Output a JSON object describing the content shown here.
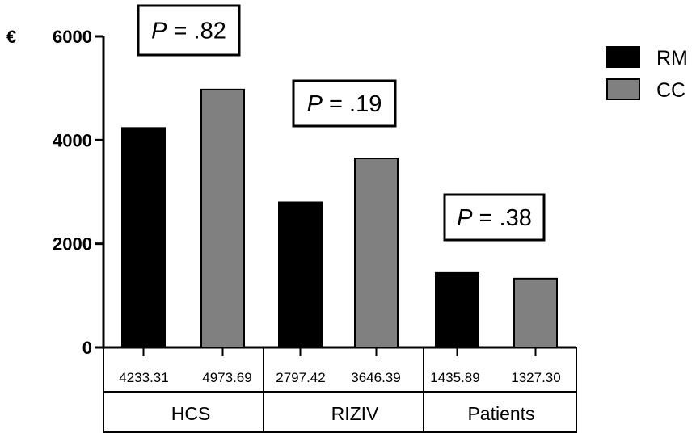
{
  "chart_data": {
    "type": "bar",
    "y_unit": "€",
    "ylim": [
      0,
      6000
    ],
    "yticks": [
      "0",
      "2000",
      "4000",
      "6000"
    ],
    "categories": [
      "HCS",
      "RIZIV",
      "Patients"
    ],
    "series": [
      {
        "name": "RM",
        "color": "#000000",
        "values": [
          4233.31,
          2797.42,
          1435.89
        ],
        "labels": [
          "4233.31",
          "2797.42",
          "1435.89"
        ]
      },
      {
        "name": "CC",
        "color": "#808080",
        "values": [
          4973.69,
          3646.39,
          1327.3
        ],
        "labels": [
          "4973.69",
          "3646.39",
          "1327.30"
        ]
      }
    ],
    "annotations": [
      {
        "category": "HCS",
        "italic": "P",
        "rest": " = .82"
      },
      {
        "category": "RIZIV",
        "italic": "P",
        "rest": " = .19"
      },
      {
        "category": "Patients",
        "italic": "P",
        "rest": " = .38"
      }
    ],
    "legend_position": "top-right",
    "grid": false
  }
}
